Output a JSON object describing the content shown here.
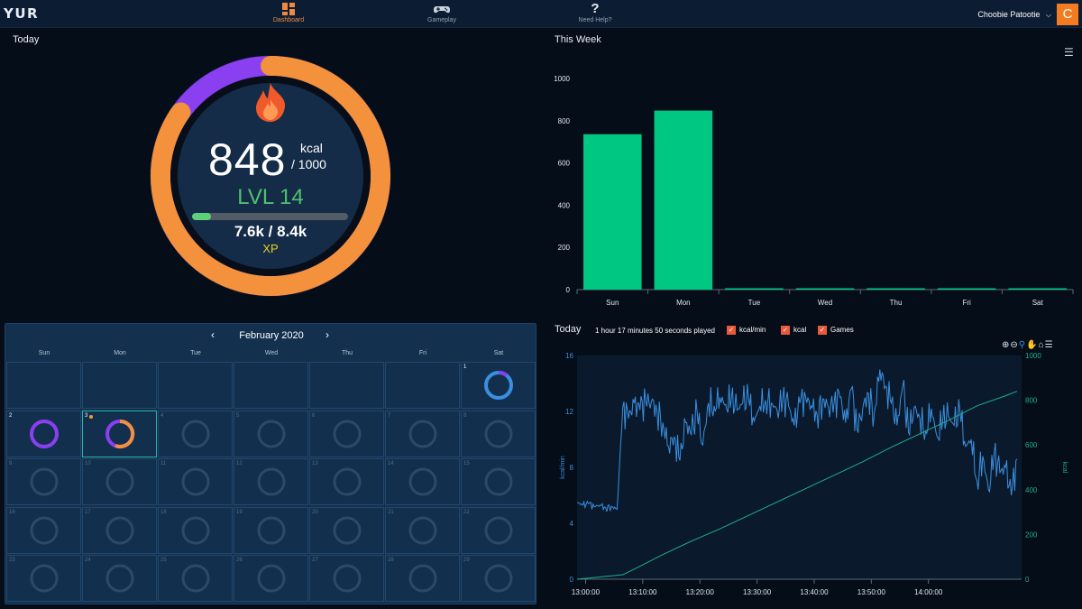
{
  "app": {
    "logo": "YUR"
  },
  "nav": [
    {
      "label": "Dashboard",
      "icon": "dashboard-icon",
      "active": true
    },
    {
      "label": "Gameplay",
      "icon": "gamepad-icon",
      "active": false
    },
    {
      "label": "Need Help?",
      "icon": "question-icon",
      "active": false
    }
  ],
  "user": {
    "name": "Choobie Patootie",
    "avatar_letter": "C"
  },
  "today": {
    "title": "Today",
    "kcal": "848",
    "kcal_unit": "kcal",
    "kcal_goal": "/ 1000",
    "kcal_fraction": 0.848,
    "level": "LVL 14",
    "xp": "7.6k / 8.4k",
    "xp_label": "XP",
    "xp_fraction": 0.12
  },
  "week": {
    "title": "This Week",
    "chart_data": {
      "type": "bar",
      "categories": [
        "Sun",
        "Mon",
        "Tue",
        "Wed",
        "Thu",
        "Fri",
        "Sat"
      ],
      "values": [
        736,
        848,
        0,
        0,
        0,
        0,
        0
      ],
      "ylim": [
        0,
        1000
      ],
      "yticks": [
        0,
        200,
        400,
        600,
        800,
        1000
      ],
      "color": "#00c882"
    }
  },
  "calendar": {
    "month": "February 2020",
    "prev": "‹",
    "next": "›",
    "days_of_week": [
      "Sun",
      "Mon",
      "Tue",
      "Wed",
      "Thu",
      "Fri",
      "Sat"
    ],
    "cells": [
      {
        "n": ""
      },
      {
        "n": ""
      },
      {
        "n": ""
      },
      {
        "n": ""
      },
      {
        "n": ""
      },
      {
        "n": ""
      },
      {
        "n": "1",
        "ring": "blue"
      },
      {
        "n": "2",
        "ring": "purple"
      },
      {
        "n": "3",
        "ring": "purple-orange",
        "today": true,
        "dot": true
      },
      {
        "n": "4"
      },
      {
        "n": "5"
      },
      {
        "n": "6"
      },
      {
        "n": "7"
      },
      {
        "n": "8"
      },
      {
        "n": "9"
      },
      {
        "n": "10"
      },
      {
        "n": "11"
      },
      {
        "n": "12"
      },
      {
        "n": "13"
      },
      {
        "n": "14"
      },
      {
        "n": "15"
      },
      {
        "n": "16"
      },
      {
        "n": "17"
      },
      {
        "n": "18"
      },
      {
        "n": "19"
      },
      {
        "n": "20"
      },
      {
        "n": "21"
      },
      {
        "n": "22"
      },
      {
        "n": "23"
      },
      {
        "n": "24"
      },
      {
        "n": "25"
      },
      {
        "n": "26"
      },
      {
        "n": "27"
      },
      {
        "n": "28"
      },
      {
        "n": "29"
      }
    ]
  },
  "session": {
    "title": "Today",
    "played": "1 hour 17 minutes 50 seconds played",
    "legend": [
      "kcal/min",
      "kcal",
      "Games"
    ],
    "chart_data": {
      "type": "line",
      "x_ticks": [
        "13:00:00",
        "13:10:00",
        "13:20:00",
        "13:30:00",
        "13:40:00",
        "13:50:00",
        "14:00:00"
      ],
      "x_range": [
        "12:58:30",
        "14:16:20"
      ],
      "y_left": {
        "label": "kcal/min",
        "range": [
          0,
          16
        ],
        "ticks": [
          0,
          4,
          8,
          12,
          16
        ]
      },
      "y_right": {
        "label": "kcal",
        "range": [
          0,
          1000
        ],
        "ticks": [
          0,
          200,
          400,
          600,
          800,
          1000
        ]
      },
      "series": [
        {
          "name": "kcal/min",
          "color": "#3a8fe0",
          "x_minutes": [
            0,
            1,
            2,
            3,
            4,
            5,
            6,
            7,
            8,
            9,
            10,
            11,
            12,
            13,
            14,
            15,
            16,
            17,
            18,
            19,
            20,
            21,
            22,
            23,
            24,
            25,
            26,
            27,
            28,
            29,
            30,
            31,
            32,
            33,
            34,
            35,
            36,
            37,
            38,
            39,
            40,
            41,
            42,
            43,
            44,
            45,
            46,
            47,
            48,
            49,
            50,
            51,
            52,
            53,
            54,
            55,
            56,
            57,
            58,
            59,
            60,
            61,
            62,
            63,
            64,
            65,
            66,
            67,
            68,
            69,
            70,
            71,
            72,
            73,
            74,
            75,
            76,
            77
          ],
          "values": [
            5.5,
            5.3,
            5.4,
            5.2,
            5.3,
            5.1,
            5.2,
            5.0,
            12.3,
            11.5,
            12.6,
            12.1,
            12.8,
            12.7,
            12.0,
            11.2,
            9.5,
            10.2,
            8.5,
            11.2,
            10.3,
            12.0,
            9.6,
            12.6,
            12.4,
            13.0,
            12.5,
            12.9,
            12.1,
            12.6,
            12.9,
            11.3,
            12.4,
            12.8,
            12.6,
            12.1,
            12.9,
            12.4,
            11.0,
            12.6,
            13.0,
            12.4,
            11.8,
            12.9,
            12.3,
            12.7,
            13.0,
            11.2,
            13.6,
            10.7,
            12.2,
            13.3,
            11.8,
            15.0,
            13.8,
            12.6,
            11.0,
            13.8,
            10.5,
            12.3,
            11.5,
            10.6,
            12.2,
            10.2,
            11.4,
            11.6,
            11.0,
            12.0,
            9.5,
            10.0,
            7.0,
            8.8,
            6.4,
            9.0,
            7.6,
            8.0,
            6.0,
            8.6
          ]
        },
        {
          "name": "kcal",
          "color": "#1fae8c",
          "x_minutes": [
            0,
            8,
            10,
            15,
            20,
            25,
            30,
            35,
            40,
            45,
            50,
            55,
            60,
            65,
            70,
            75,
            77
          ],
          "values": [
            0,
            20,
            45,
            110,
            170,
            225,
            285,
            345,
            405,
            465,
            525,
            590,
            650,
            710,
            775,
            820,
            840
          ]
        }
      ]
    }
  }
}
